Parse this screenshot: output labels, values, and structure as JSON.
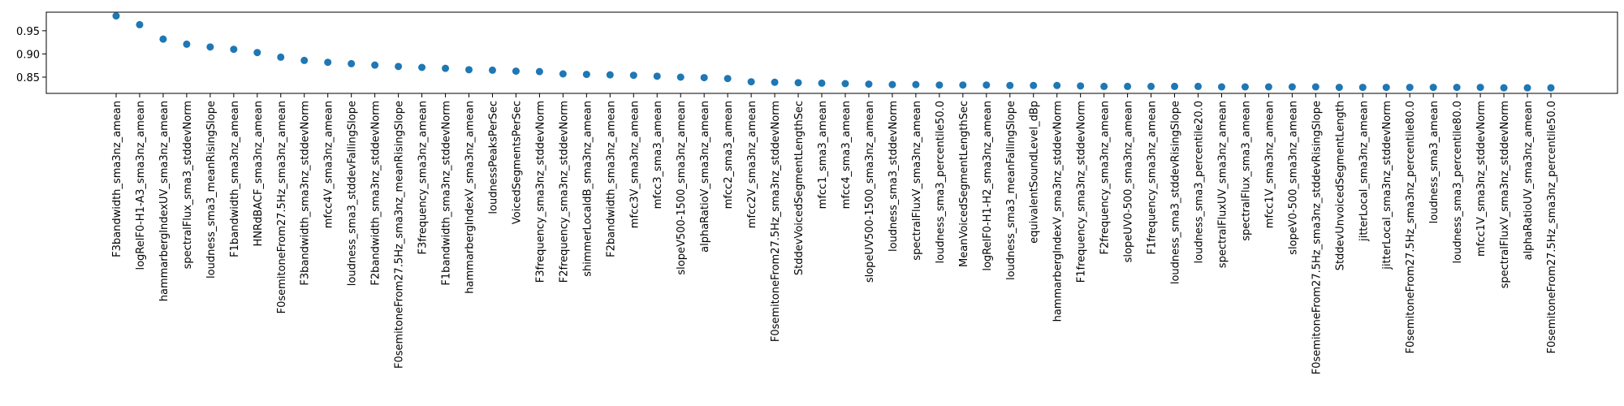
{
  "chart_data": {
    "type": "scatter",
    "title": "",
    "xlabel": "",
    "ylabel": "",
    "ylim": [
      0.815,
      0.99
    ],
    "yticks": [
      0.85,
      0.9,
      0.95
    ],
    "ytick_labels": [
      "0.85",
      "0.90",
      "0.95"
    ],
    "grid": false,
    "marker_color": "#1f77b4",
    "categories": [
      "F3bandwidth_sma3nz_amean",
      "logRelF0-H1-A3_sma3nz_amean",
      "hammarbergIndexUV_sma3nz_amean",
      "spectralFlux_sma3_stddevNorm",
      "loudness_sma3_meanRisingSlope",
      "F1bandwidth_sma3nz_amean",
      "HNRdBACF_sma3nz_amean",
      "F0semitoneFrom27.5Hz_sma3nz_amean",
      "F3bandwidth_sma3nz_stddevNorm",
      "mfcc4V_sma3nz_amean",
      "loudness_sma3_stddevFallingSlope",
      "F2bandwidth_sma3nz_stddevNorm",
      "F0semitoneFrom27.5Hz_sma3nz_meanRisingSlope",
      "F3frequency_sma3nz_amean",
      "F1bandwidth_sma3nz_stddevNorm",
      "hammarbergIndexV_sma3nz_amean",
      "loudnessPeaksPerSec",
      "VoicedSegmentsPerSec",
      "F3frequency_sma3nz_stddevNorm",
      "F2frequency_sma3nz_stddevNorm",
      "shimmerLocaldB_sma3nz_amean",
      "F2bandwidth_sma3nz_amean",
      "mfcc3V_sma3nz_amean",
      "mfcc3_sma3_amean",
      "slopeV500-1500_sma3nz_amean",
      "alphaRatioV_sma3nz_amean",
      "mfcc2_sma3_amean",
      "mfcc2V_sma3nz_amean",
      "F0semitoneFrom27.5Hz_sma3nz_stddevNorm",
      "StddevVoicedSegmentLengthSec",
      "mfcc1_sma3_amean",
      "mfcc4_sma3_amean",
      "slopeUV500-1500_sma3nz_amean",
      "loudness_sma3_stddevNorm",
      "spectralFluxV_sma3nz_amean",
      "loudness_sma3_percentile50.0",
      "MeanVoicedSegmentLengthSec",
      "logRelF0-H1-H2_sma3nz_amean",
      "loudness_sma3_meanFallingSlope",
      "equivalentSoundLevel_dBp",
      "hammarbergIndexV_sma3nz_stddevNorm",
      "F1frequency_sma3nz_stddevNorm",
      "F2frequency_sma3nz_amean",
      "slopeUV0-500_sma3nz_amean",
      "F1frequency_sma3nz_amean",
      "loudness_sma3_stddevRisingSlope",
      "loudness_sma3_percentile20.0",
      "spectralFluxUV_sma3nz_amean",
      "spectralFlux_sma3_amean",
      "mfcc1V_sma3nz_amean",
      "slopeV0-500_sma3nz_amean",
      "F0semitoneFrom27.5Hz_sma3nz_stddevRisingSlope",
      "StddevUnvoicedSegmentLength",
      "jitterLocal_sma3nz_amean",
      "jitterLocal_sma3nz_stddevNorm",
      "F0semitoneFrom27.5Hz_sma3nz_percentile80.0",
      "loudness_sma3_amean",
      "loudness_sma3_percentile80.0",
      "mfcc1V_sma3nz_stddevNorm",
      "spectralFluxV_sma3nz_stddevNorm",
      "alphaRatioUV_sma3nz_amean",
      "F0semitoneFrom27.5Hz_sma3nz_percentile50.0"
    ],
    "values": [
      0.982,
      0.963,
      0.932,
      0.921,
      0.915,
      0.91,
      0.903,
      0.893,
      0.886,
      0.882,
      0.879,
      0.876,
      0.873,
      0.871,
      0.869,
      0.866,
      0.865,
      0.863,
      0.862,
      0.857,
      0.856,
      0.855,
      0.854,
      0.852,
      0.85,
      0.849,
      0.847,
      0.84,
      0.839,
      0.838,
      0.837,
      0.836,
      0.835,
      0.834,
      0.834,
      0.833,
      0.833,
      0.833,
      0.832,
      0.832,
      0.832,
      0.831,
      0.83,
      0.83,
      0.83,
      0.83,
      0.83,
      0.829,
      0.829,
      0.829,
      0.829,
      0.829,
      0.828,
      0.828,
      0.828,
      0.828,
      0.828,
      0.828,
      0.828,
      0.827,
      0.827,
      0.827
    ]
  }
}
